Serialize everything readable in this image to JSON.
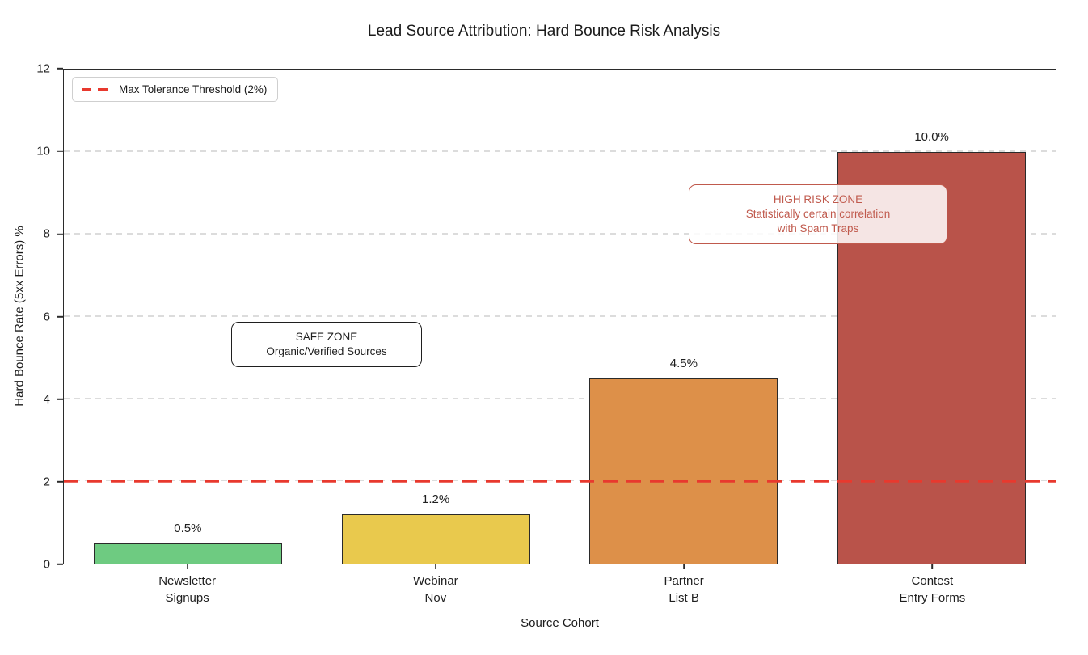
{
  "title": "Lead Source Attribution: Hard Bounce Risk Analysis",
  "chart_data": {
    "type": "bar",
    "title": "Lead Source Attribution: Hard Bounce Risk Analysis",
    "categories": [
      [
        "Newsletter",
        "Signups"
      ],
      [
        "Webinar",
        "Nov"
      ],
      [
        "Partner",
        "List B"
      ],
      [
        "Contest",
        "Entry Forms"
      ]
    ],
    "values": [
      0.5,
      1.2,
      4.5,
      10.0
    ],
    "bar_labels": [
      "0.5%",
      "1.2%",
      "4.5%",
      "10.0%"
    ],
    "colors": [
      "#6ecb81",
      "#e9c94d",
      "#dd9049",
      "#b9534a"
    ],
    "bar_edge_color": "#2a2a2a",
    "xlabel": "Source Cohort",
    "ylabel": "Hard Bounce Rate (5xx Errors) %",
    "ylim": [
      0,
      12
    ],
    "yticks": [
      0,
      2,
      4,
      6,
      8,
      10,
      12
    ],
    "grid": "horizontal-dashed",
    "gridline_color": "#dcdcdc",
    "legend_position": "upper-left",
    "threshold": {
      "value": 2,
      "label": "Max Tolerance Threshold (2%)",
      "color": "#e8392e",
      "style": "dashed"
    },
    "annotations": [
      {
        "id": "safe-zone",
        "lines": [
          "SAFE ZONE",
          "Organic/Verified Sources"
        ],
        "color": "#5cb express85c"
      },
      {
        "id": "high-risk-zone",
        "lines": [
          "HIGH RISK ZONE",
          "Statistically certain correlation",
          "with Spam Traps"
        ],
        "color": "#c05a4d"
      }
    ]
  }
}
